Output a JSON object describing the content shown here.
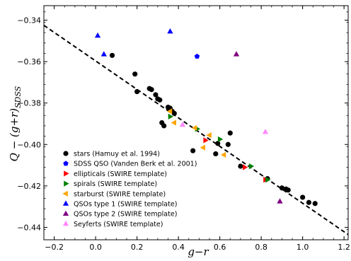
{
  "chart_data": {
    "type": "scatter",
    "xlabel": "g−r",
    "ylabel_main": "Q − (g+r)",
    "ylabel_sub": "SDSS",
    "xlim": [
      -0.25,
      1.22
    ],
    "ylim": [
      -0.446,
      -0.333
    ],
    "xticks": [
      -0.2,
      0.0,
      0.2,
      0.4,
      0.6,
      0.8,
      1.0,
      1.2
    ],
    "xtick_labels": [
      "−0.2",
      "0.0",
      "0.2",
      "0.4",
      "0.6",
      "0.8",
      "1.0",
      "1.2"
    ],
    "yticks": [
      -0.34,
      -0.36,
      -0.38,
      -0.4,
      -0.42,
      -0.44
    ],
    "ytick_labels": [
      "−0.34",
      "−0.36",
      "−0.38",
      "−0.40",
      "−0.42",
      "−0.44"
    ],
    "grid": false,
    "legend_position": "bottom-left",
    "fit_line": {
      "style": "dashed",
      "color": "#000000",
      "x": [
        -0.25,
        1.22
      ],
      "y": [
        -0.3425,
        -0.4435
      ]
    },
    "series": [
      {
        "name": "stars (Hamuy et al. 1994)",
        "marker": "circle",
        "color": "#000000",
        "points": [
          [
            0.08,
            -0.357
          ],
          [
            0.19,
            -0.366
          ],
          [
            0.2,
            -0.3745
          ],
          [
            0.26,
            -0.373
          ],
          [
            0.27,
            -0.3735
          ],
          [
            0.29,
            -0.376
          ],
          [
            0.3,
            -0.378
          ],
          [
            0.31,
            -0.3785
          ],
          [
            0.32,
            -0.3895
          ],
          [
            0.33,
            -0.391
          ],
          [
            0.35,
            -0.382
          ],
          [
            0.36,
            -0.3825
          ],
          [
            0.36,
            -0.3835
          ],
          [
            0.37,
            -0.384
          ],
          [
            0.38,
            -0.385
          ],
          [
            0.47,
            -0.403
          ],
          [
            0.58,
            -0.4045
          ],
          [
            0.59,
            -0.3995
          ],
          [
            0.64,
            -0.4
          ],
          [
            0.65,
            -0.3945
          ],
          [
            0.7,
            -0.4105
          ],
          [
            0.83,
            -0.4165
          ],
          [
            0.9,
            -0.421
          ],
          [
            0.92,
            -0.4215
          ],
          [
            0.93,
            -0.422
          ],
          [
            1.0,
            -0.4255
          ],
          [
            1.03,
            -0.428
          ],
          [
            1.06,
            -0.4285
          ]
        ]
      },
      {
        "name": "SDSS QSO (Vanden Berk et al. 2001)",
        "marker": "pentagon",
        "color": "#0000ff",
        "points": [
          [
            0.49,
            -0.3575
          ]
        ]
      },
      {
        "name": "ellipticals (SWIRE template)",
        "marker": "triangle-right",
        "color": "#ff0000",
        "points": [
          [
            0.53,
            -0.398
          ],
          [
            0.72,
            -0.411
          ],
          [
            0.82,
            -0.417
          ]
        ]
      },
      {
        "name": "spirals (SWIRE template)",
        "marker": "triangle-right",
        "color": "#008000",
        "points": [
          [
            0.36,
            -0.3865
          ],
          [
            0.49,
            -0.3925
          ],
          [
            0.6,
            -0.3975
          ],
          [
            0.75,
            -0.4105
          ],
          [
            0.83,
            -0.417
          ]
        ]
      },
      {
        "name": "starburst (SWIRE template)",
        "marker": "triangle-left",
        "color": "#ffa500",
        "points": [
          [
            0.36,
            -0.384
          ],
          [
            0.38,
            -0.3895
          ],
          [
            0.48,
            -0.392
          ],
          [
            0.52,
            -0.4015
          ],
          [
            0.55,
            -0.3955
          ],
          [
            0.62,
            -0.405
          ]
        ]
      },
      {
        "name": "QSOs type 1 (SWIRE template)",
        "marker": "triangle-up",
        "color": "#0000ff",
        "points": [
          [
            0.01,
            -0.3475
          ],
          [
            0.04,
            -0.3565
          ],
          [
            0.36,
            -0.3455
          ]
        ]
      },
      {
        "name": "QSOs type 2 (SWIRE template)",
        "marker": "triangle-up",
        "color": "#800080",
        "points": [
          [
            0.68,
            -0.3565
          ],
          [
            0.89,
            -0.4275
          ]
        ]
      },
      {
        "name": "Seyferts (SWIRE template)",
        "marker": "triangle-up",
        "color": "#ff88ff",
        "points": [
          [
            0.42,
            -0.3905
          ],
          [
            0.82,
            -0.394
          ]
        ]
      }
    ]
  }
}
